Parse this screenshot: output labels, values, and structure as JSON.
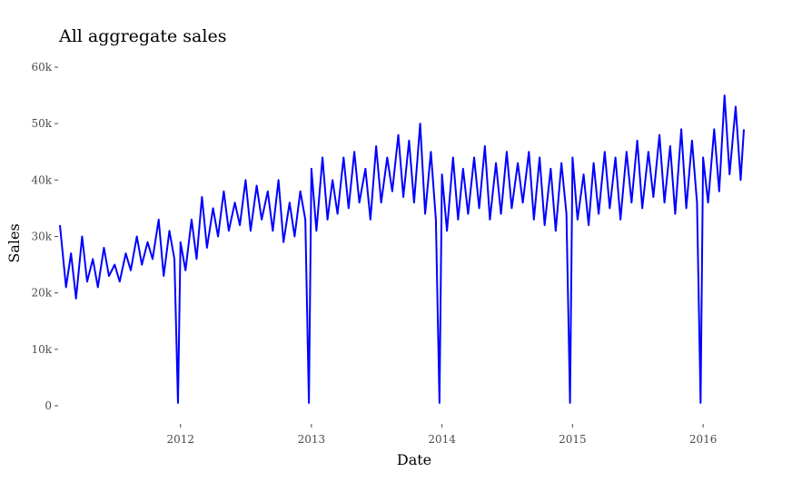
{
  "chart_data": {
    "type": "line",
    "title": "All aggregate sales",
    "xlabel": "Date",
    "ylabel": "Sales",
    "xlim": [
      "2011-01-29",
      "2016-04-24"
    ],
    "ylim": [
      0,
      60000
    ],
    "x_ticks": [
      {
        "value": "2012-01-01",
        "label": "2012"
      },
      {
        "value": "2013-01-01",
        "label": "2013"
      },
      {
        "value": "2014-01-01",
        "label": "2014"
      },
      {
        "value": "2015-01-01",
        "label": "2015"
      },
      {
        "value": "2016-01-01",
        "label": "2016"
      }
    ],
    "y_ticks": [
      {
        "value": 0,
        "label": "0"
      },
      {
        "value": 10000,
        "label": "10k"
      },
      {
        "value": 20000,
        "label": "20k"
      },
      {
        "value": 30000,
        "label": "30k"
      },
      {
        "value": 40000,
        "label": "40k"
      },
      {
        "value": 50000,
        "label": "50k"
      },
      {
        "value": 60000,
        "label": "60k"
      }
    ],
    "grid": false,
    "line_color": "#0000ff",
    "series": [
      {
        "x": [
          "2011-01-29",
          "2011-02-15",
          "2011-03-01",
          "2011-03-15",
          "2011-04-01",
          "2011-04-15",
          "2011-05-01",
          "2011-05-15",
          "2011-06-01",
          "2011-06-15",
          "2011-07-01",
          "2011-07-15",
          "2011-08-01",
          "2011-08-15",
          "2011-09-01",
          "2011-09-15",
          "2011-10-01",
          "2011-10-15",
          "2011-11-01",
          "2011-11-15",
          "2011-12-01",
          "2011-12-15",
          "2011-12-25",
          "2012-01-01",
          "2012-01-15",
          "2012-02-01",
          "2012-02-15",
          "2012-03-01",
          "2012-03-15",
          "2012-04-01",
          "2012-04-15",
          "2012-05-01",
          "2012-05-15",
          "2012-06-01",
          "2012-06-15",
          "2012-07-01",
          "2012-07-15",
          "2012-08-01",
          "2012-08-15",
          "2012-09-01",
          "2012-09-15",
          "2012-10-01",
          "2012-10-15",
          "2012-11-01",
          "2012-11-15",
          "2012-12-01",
          "2012-12-15",
          "2012-12-25",
          "2013-01-01",
          "2013-01-15",
          "2013-02-01",
          "2013-02-15",
          "2013-03-01",
          "2013-03-15",
          "2013-04-01",
          "2013-04-15",
          "2013-05-01",
          "2013-05-15",
          "2013-06-01",
          "2013-06-15",
          "2013-07-01",
          "2013-07-15",
          "2013-08-01",
          "2013-08-15",
          "2013-09-01",
          "2013-09-15",
          "2013-10-01",
          "2013-10-15",
          "2013-11-01",
          "2013-11-15",
          "2013-12-01",
          "2013-12-15",
          "2013-12-25",
          "2014-01-01",
          "2014-01-15",
          "2014-02-01",
          "2014-02-15",
          "2014-03-01",
          "2014-03-15",
          "2014-04-01",
          "2014-04-15",
          "2014-05-01",
          "2014-05-15",
          "2014-06-01",
          "2014-06-15",
          "2014-07-01",
          "2014-07-15",
          "2014-08-01",
          "2014-08-15",
          "2014-09-01",
          "2014-09-15",
          "2014-10-01",
          "2014-10-15",
          "2014-11-01",
          "2014-11-15",
          "2014-12-01",
          "2014-12-15",
          "2014-12-25",
          "2015-01-01",
          "2015-01-15",
          "2015-02-01",
          "2015-02-15",
          "2015-03-01",
          "2015-03-15",
          "2015-04-01",
          "2015-04-15",
          "2015-05-01",
          "2015-05-15",
          "2015-06-01",
          "2015-06-15",
          "2015-07-01",
          "2015-07-15",
          "2015-08-01",
          "2015-08-15",
          "2015-09-01",
          "2015-09-15",
          "2015-10-01",
          "2015-10-15",
          "2015-11-01",
          "2015-11-15",
          "2015-12-01",
          "2015-12-15",
          "2015-12-25",
          "2016-01-01",
          "2016-01-15",
          "2016-02-01",
          "2016-02-15",
          "2016-03-01",
          "2016-03-15",
          "2016-04-01",
          "2016-04-15",
          "2016-04-24"
        ],
        "y": [
          32000,
          21000,
          27000,
          19000,
          30000,
          22000,
          26000,
          21000,
          28000,
          23000,
          25000,
          22000,
          27000,
          24000,
          30000,
          25000,
          29000,
          26000,
          33000,
          23000,
          31000,
          26000,
          500,
          29000,
          24000,
          33000,
          26000,
          37000,
          28000,
          35000,
          30000,
          38000,
          31000,
          36000,
          32000,
          40000,
          31000,
          39000,
          33000,
          38000,
          31000,
          40000,
          29000,
          36000,
          30000,
          38000,
          33000,
          500,
          42000,
          31000,
          44000,
          33000,
          40000,
          34000,
          44000,
          35000,
          45000,
          36000,
          42000,
          33000,
          46000,
          36000,
          44000,
          38000,
          48000,
          37000,
          47000,
          36000,
          50000,
          34000,
          45000,
          33000,
          500,
          41000,
          31000,
          44000,
          33000,
          42000,
          34000,
          44000,
          35000,
          46000,
          33000,
          43000,
          34000,
          45000,
          35000,
          43000,
          36000,
          45000,
          33000,
          44000,
          32000,
          42000,
          31000,
          43000,
          34000,
          500,
          44000,
          33000,
          41000,
          32000,
          43000,
          34000,
          45000,
          35000,
          44000,
          33000,
          45000,
          36000,
          47000,
          35000,
          45000,
          37000,
          48000,
          36000,
          46000,
          34000,
          49000,
          35000,
          47000,
          36000,
          500,
          44000,
          36000,
          49000,
          38000,
          55000,
          41000,
          53000,
          40000,
          49000
        ]
      }
    ]
  }
}
